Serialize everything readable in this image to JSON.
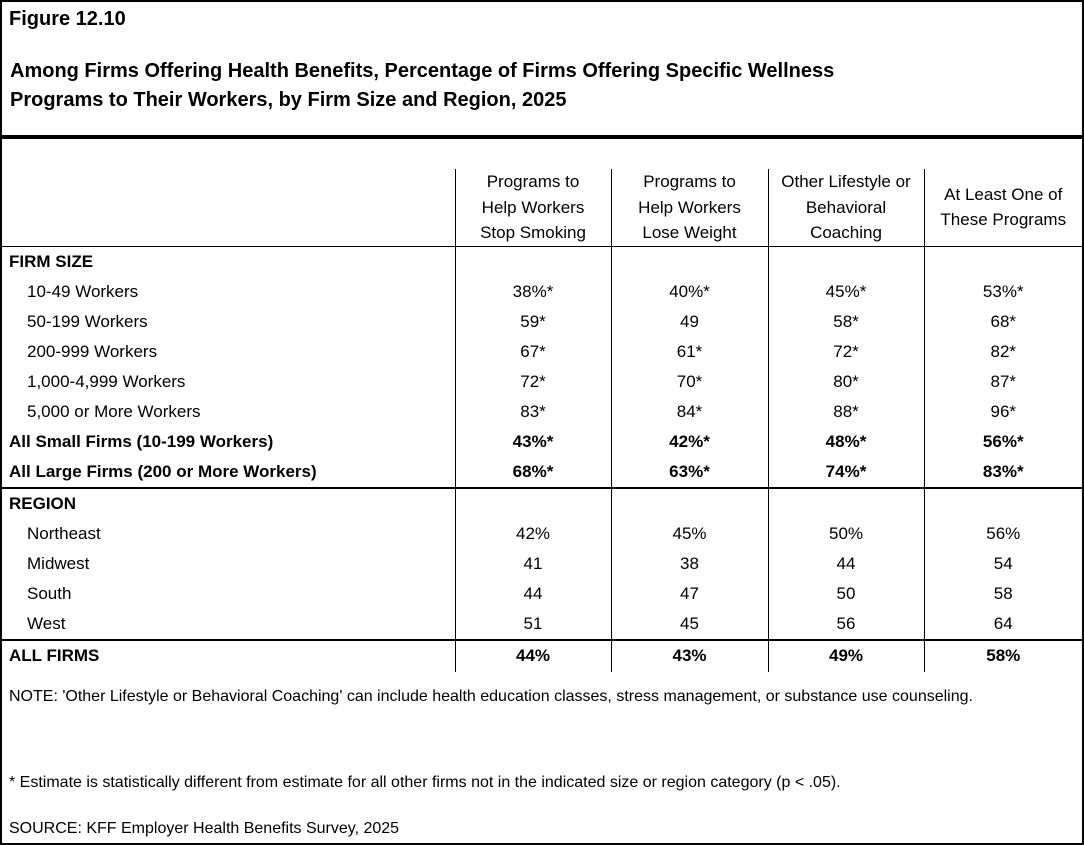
{
  "figure_label": "Figure 12.10",
  "title_line1": "Among Firms Offering Health Benefits, Percentage of Firms Offering Specific Wellness",
  "title_line2": "Programs to Their Workers, by Firm Size and Region, 2025",
  "chart_data": {
    "type": "table",
    "title": "Among Firms Offering Health Benefits, Percentage of Firms Offering Specific Wellness Programs to Their Workers, by Firm Size and Region, 2025",
    "columns": [
      {
        "lines": [
          "Programs to",
          "Help Workers",
          "Stop Smoking"
        ]
      },
      {
        "lines": [
          "Programs to",
          "Help Workers",
          "Lose Weight"
        ]
      },
      {
        "lines": [
          "Other Lifestyle or",
          "Behavioral",
          "Coaching"
        ]
      },
      {
        "lines": [
          "At Least One of",
          "These Programs"
        ]
      }
    ],
    "rows": [
      {
        "label": "FIRM SIZE",
        "section": true,
        "values": []
      },
      {
        "label": "10-49 Workers",
        "values": [
          "38%*",
          "40%*",
          "45%*",
          "53%*"
        ]
      },
      {
        "label": "50-199 Workers",
        "values": [
          "59*",
          "49",
          "58*",
          "68*"
        ]
      },
      {
        "label": "200-999 Workers",
        "values": [
          "67*",
          "61*",
          "72*",
          "82*"
        ]
      },
      {
        "label": "1,000-4,999 Workers",
        "values": [
          "72*",
          "70*",
          "80*",
          "87*"
        ]
      },
      {
        "label": "5,000 or More Workers",
        "values": [
          "83*",
          "84*",
          "88*",
          "96*"
        ]
      },
      {
        "label": "All Small Firms (10-199 Workers)",
        "bold": true,
        "values": [
          "43%*",
          "42%*",
          "48%*",
          "56%*"
        ]
      },
      {
        "label": "All Large Firms (200 or More Workers)",
        "bold": true,
        "values": [
          "68%*",
          "63%*",
          "74%*",
          "83%*"
        ]
      },
      {
        "label": "REGION",
        "section": true,
        "rule_above": true,
        "values": []
      },
      {
        "label": "Northeast",
        "values": [
          "42%",
          "45%",
          "50%",
          "56%"
        ]
      },
      {
        "label": "Midwest",
        "values": [
          "41",
          "38",
          "44",
          "54"
        ]
      },
      {
        "label": "South",
        "values": [
          "44",
          "47",
          "50",
          "58"
        ]
      },
      {
        "label": "West",
        "values": [
          "51",
          "45",
          "56",
          "64"
        ]
      },
      {
        "label": "ALL FIRMS",
        "bold": true,
        "rule_above": true,
        "last": true,
        "values": [
          "44%",
          "43%",
          "49%",
          "58%"
        ]
      }
    ]
  },
  "note": "NOTE: 'Other Lifestyle or Behavioral Coaching' can include health education classes, stress management, or substance use counseling.",
  "footnote": "* Estimate is statistically different from estimate for all other firms not in the indicated size or region category (p < .05).",
  "source": "SOURCE: KFF Employer Health Benefits Survey, 2025"
}
